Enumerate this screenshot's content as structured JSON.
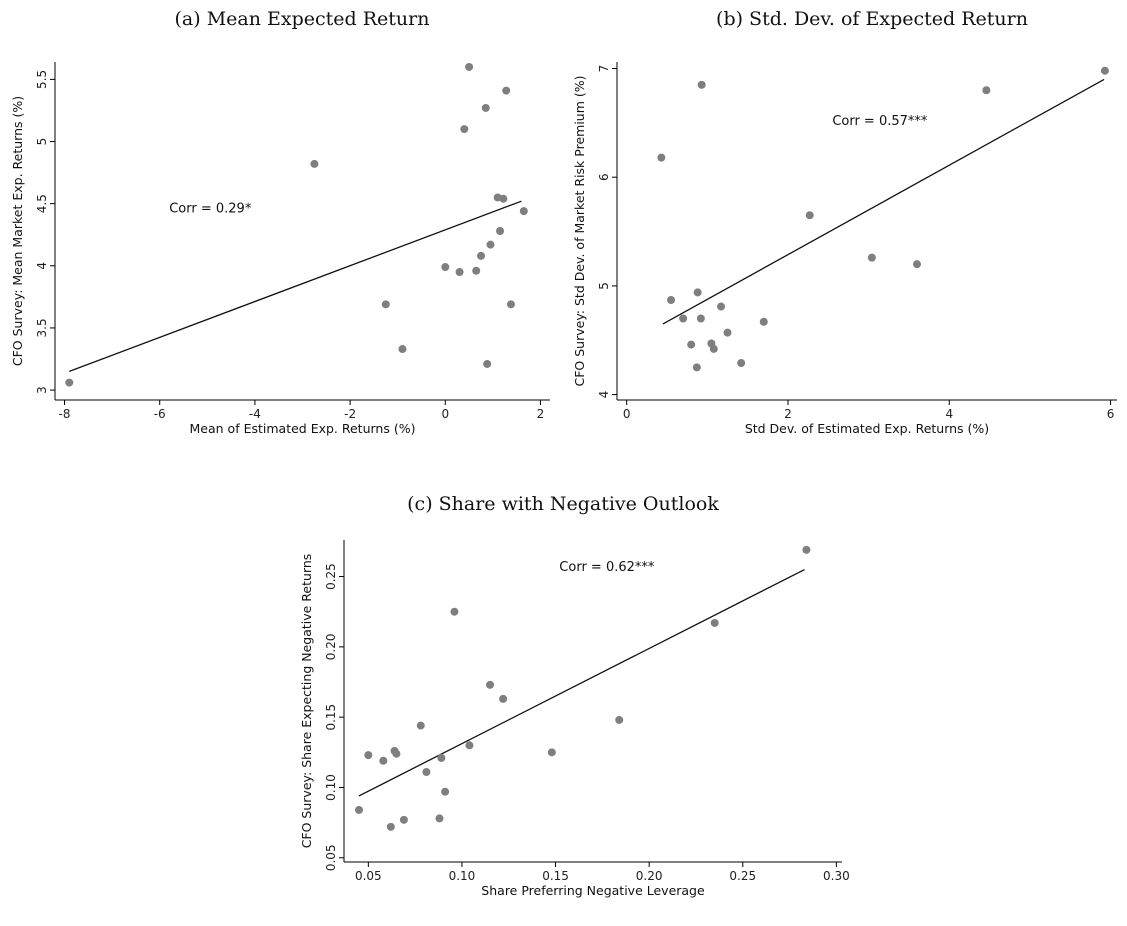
{
  "chart_data": [
    {
      "type": "scatter",
      "title": "(a) Mean Expected Return",
      "xlabel": "Mean of Estimated Exp. Returns (%)",
      "ylabel": "CFO Survey: Mean Market Exp. Returns (%)",
      "xlim": [
        -8.2,
        2.2
      ],
      "ylim": [
        2.92,
        5.64
      ],
      "xticks": [
        -8,
        -6,
        -4,
        -2,
        0,
        2
      ],
      "xtick_labels": [
        "-8",
        "-6",
        "-4",
        "-2",
        "0",
        "2"
      ],
      "yticks": [
        3,
        3.5,
        4,
        4.5,
        5,
        5.5
      ],
      "ytick_labels": [
        "3",
        "3.5",
        "4",
        "4.5",
        "5",
        "5.5"
      ],
      "annotation": {
        "text": "Corr = 0.29*",
        "x": -5.8,
        "y": 4.43
      },
      "fit": {
        "x": [
          -7.9,
          1.6
        ],
        "y": [
          3.15,
          4.52
        ]
      },
      "points": [
        [
          -7.9,
          3.06
        ],
        [
          -2.75,
          4.82
        ],
        [
          -1.25,
          3.69
        ],
        [
          -0.9,
          3.33
        ],
        [
          0.0,
          3.99
        ],
        [
          0.3,
          3.95
        ],
        [
          0.4,
          5.1
        ],
        [
          0.5,
          5.6
        ],
        [
          0.65,
          3.96
        ],
        [
          0.75,
          4.08
        ],
        [
          0.85,
          5.27
        ],
        [
          0.88,
          3.21
        ],
        [
          0.95,
          4.17
        ],
        [
          1.1,
          4.55
        ],
        [
          1.15,
          4.28
        ],
        [
          1.22,
          4.54
        ],
        [
          1.28,
          5.41
        ],
        [
          1.38,
          3.69
        ],
        [
          1.65,
          4.44
        ]
      ]
    },
    {
      "type": "scatter",
      "title": "(b) Std. Dev. of Expected Return",
      "xlabel": "Std Dev. of Estimated Exp. Returns (%)",
      "ylabel": "CFO Survey: Std Dev. of Market Risk Premium (%)",
      "xlim": [
        -0.12,
        6.08
      ],
      "ylim": [
        3.95,
        7.06
      ],
      "xticks": [
        0,
        2,
        4,
        6
      ],
      "xtick_labels": [
        "0",
        "2",
        "4",
        "6"
      ],
      "yticks": [
        4,
        5,
        6,
        7
      ],
      "ytick_labels": [
        "4",
        "5",
        "6",
        "7"
      ],
      "annotation": {
        "text": "Corr = 0.57***",
        "x": 2.55,
        "y": 6.48
      },
      "fit": {
        "x": [
          0.45,
          5.92
        ],
        "y": [
          4.65,
          6.9
        ]
      },
      "points": [
        [
          0.43,
          6.18
        ],
        [
          0.55,
          4.87
        ],
        [
          0.7,
          4.7
        ],
        [
          0.8,
          4.46
        ],
        [
          0.87,
          4.25
        ],
        [
          0.88,
          4.94
        ],
        [
          0.92,
          4.7
        ],
        [
          0.93,
          6.85
        ],
        [
          1.05,
          4.47
        ],
        [
          1.08,
          4.42
        ],
        [
          1.17,
          4.81
        ],
        [
          1.25,
          4.57
        ],
        [
          1.42,
          4.29
        ],
        [
          1.7,
          4.67
        ],
        [
          2.27,
          5.65
        ],
        [
          3.04,
          5.26
        ],
        [
          3.6,
          5.2
        ],
        [
          4.46,
          6.8
        ],
        [
          5.93,
          6.98
        ]
      ]
    },
    {
      "type": "scatter",
      "title": "(c) Share with Negative Outlook",
      "xlabel": "Share Preferring Negative Leverage",
      "ylabel": "CFO Survey: Share Expecting Negative Returns",
      "xlim": [
        0.037,
        0.303
      ],
      "ylim": [
        0.047,
        0.276
      ],
      "xticks": [
        0.05,
        0.1,
        0.15,
        0.2,
        0.25,
        0.3
      ],
      "xtick_labels": [
        "0.05",
        "0.10",
        "0.15",
        "0.20",
        "0.25",
        "0.30"
      ],
      "yticks": [
        0.05,
        0.1,
        0.15,
        0.2,
        0.25
      ],
      "ytick_labels": [
        "0.05",
        "0.10",
        "0.15",
        "0.20",
        "0.25"
      ],
      "annotation": {
        "text": "Corr = 0.62***",
        "x": 0.152,
        "y": 0.254
      },
      "fit": {
        "x": [
          0.045,
          0.283
        ],
        "y": [
          0.094,
          0.255
        ]
      },
      "points": [
        [
          0.045,
          0.084
        ],
        [
          0.05,
          0.123
        ],
        [
          0.058,
          0.119
        ],
        [
          0.062,
          0.072
        ],
        [
          0.064,
          0.126
        ],
        [
          0.065,
          0.124
        ],
        [
          0.069,
          0.077
        ],
        [
          0.078,
          0.144
        ],
        [
          0.081,
          0.111
        ],
        [
          0.088,
          0.078
        ],
        [
          0.089,
          0.121
        ],
        [
          0.091,
          0.097
        ],
        [
          0.096,
          0.225
        ],
        [
          0.104,
          0.13
        ],
        [
          0.115,
          0.173
        ],
        [
          0.122,
          0.163
        ],
        [
          0.148,
          0.125
        ],
        [
          0.184,
          0.148
        ],
        [
          0.235,
          0.217
        ],
        [
          0.284,
          0.269
        ]
      ]
    }
  ]
}
